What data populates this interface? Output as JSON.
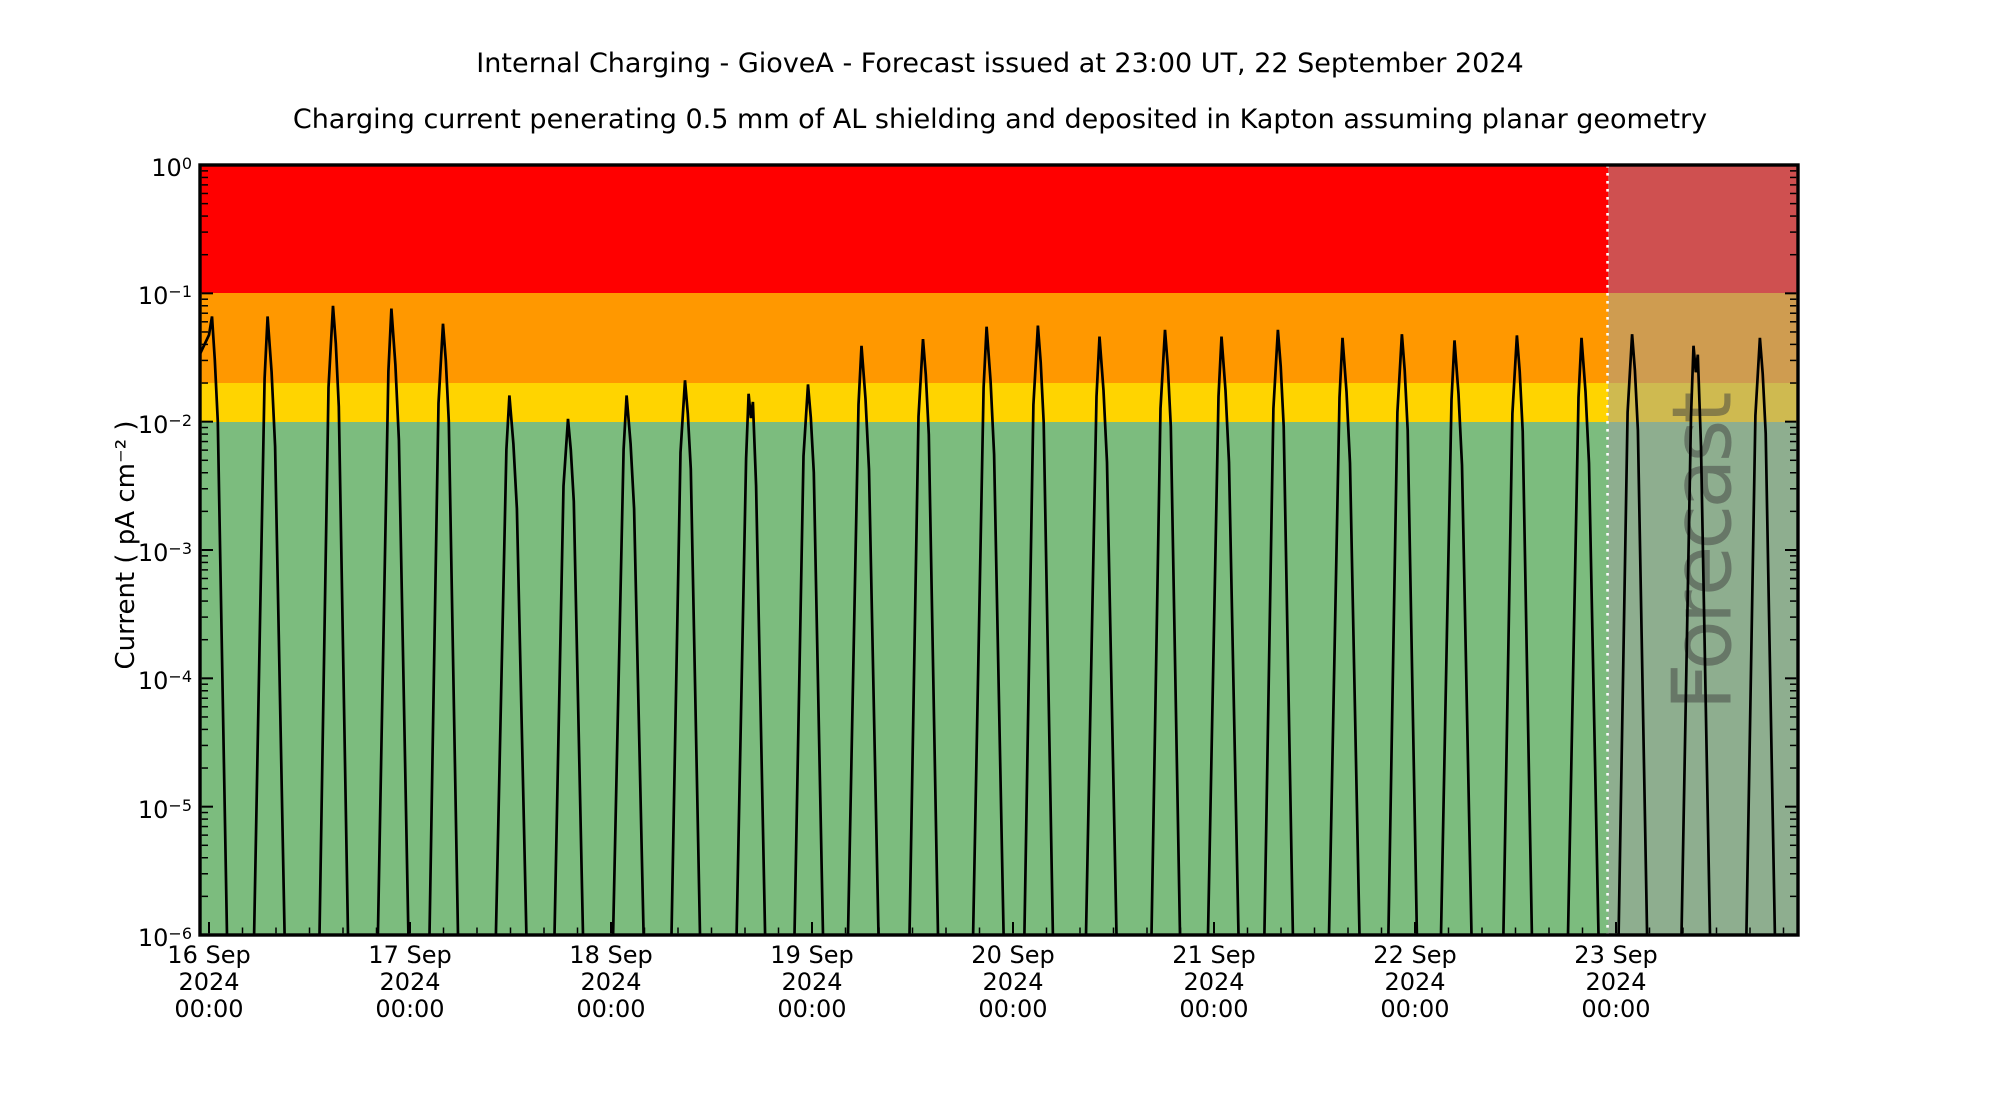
{
  "chart_data": {
    "type": "line",
    "title": "Internal Charging - GioveA - Forecast issued at 23:00 UT, 22 September 2024",
    "subtitle": "Charging current penerating 0.5 mm of AL shielding and deposited in Kapton assuming planar geometry",
    "background_color": "#ffffff",
    "y_axis": {
      "label": "Current ( pA cm⁻² )",
      "scale": "log",
      "range": [
        1e-06,
        1
      ],
      "tick_exponents": [
        0,
        -1,
        -2,
        -3,
        -4,
        -5,
        -6
      ]
    },
    "x_axis": {
      "unit": "days since 16 Sep 2024 00:00 UT",
      "range_days": [
        -0.045,
        7.906
      ],
      "tick_days": [
        0,
        1,
        2,
        3,
        4,
        5,
        6,
        7
      ],
      "tick_labels": [
        [
          "16 Sep",
          "2024",
          "00:00"
        ],
        [
          "17 Sep",
          "2024",
          "00:00"
        ],
        [
          "18 Sep",
          "2024",
          "00:00"
        ],
        [
          "19 Sep",
          "2024",
          "00:00"
        ],
        [
          "20 Sep",
          "2024",
          "00:00"
        ],
        [
          "21 Sep",
          "2024",
          "00:00"
        ],
        [
          "22 Sep",
          "2024",
          "00:00"
        ],
        [
          "23 Sep",
          "2024",
          "00:00"
        ]
      ],
      "minor_tick_hours": 4
    },
    "bands": [
      {
        "name": "red",
        "from": 0.1,
        "to": 1,
        "color": "#ff0000"
      },
      {
        "name": "orange",
        "from": 0.02,
        "to": 0.1,
        "color": "#ff9800"
      },
      {
        "name": "yellow",
        "from": 0.01,
        "to": 0.02,
        "color": "#ffd400"
      },
      {
        "name": "green",
        "from": 1e-06,
        "to": 0.01,
        "color": "#7cbc7e"
      }
    ],
    "forecast": {
      "label": "Forecast",
      "start_day": 6.958,
      "overlay_color": "rgba(160,160,160,0.5)",
      "divider_color": "#ffffff",
      "label_color": "rgba(64,64,64,0.5)"
    },
    "series": [
      {
        "name": "charging-current",
        "color": "#000000",
        "peak_unit": "pA cm-2",
        "spikes": [
          {
            "t_days": 0.015,
            "peak": 0.066
          },
          {
            "t_days": 0.294,
            "peak": 0.066
          },
          {
            "t_days": 0.617,
            "peak": 0.08
          },
          {
            "t_days": 0.91,
            "peak": 0.076
          },
          {
            "t_days": 1.164,
            "peak": 0.058
          },
          {
            "t_days": 1.497,
            "peak": 0.016
          },
          {
            "t_days": 1.786,
            "peak": 0.0105
          },
          {
            "t_days": 2.08,
            "peak": 0.016
          },
          {
            "t_days": 2.368,
            "peak": 0.021
          },
          {
            "t_days": 2.692,
            "peak": 0.0165
          },
          {
            "t_days": 2.98,
            "peak": 0.0195
          },
          {
            "t_days": 3.249,
            "peak": 0.039
          },
          {
            "t_days": 3.552,
            "peak": 0.044
          },
          {
            "t_days": 3.871,
            "peak": 0.055
          },
          {
            "t_days": 4.124,
            "peak": 0.056
          },
          {
            "t_days": 4.433,
            "peak": 0.046
          },
          {
            "t_days": 4.756,
            "peak": 0.052
          },
          {
            "t_days": 5.04,
            "peak": 0.046
          },
          {
            "t_days": 5.318,
            "peak": 0.052
          },
          {
            "t_days": 5.642,
            "peak": 0.045
          },
          {
            "t_days": 5.935,
            "peak": 0.048
          },
          {
            "t_days": 6.199,
            "peak": 0.043
          },
          {
            "t_days": 6.507,
            "peak": 0.047
          },
          {
            "t_days": 6.831,
            "peak": 0.045
          },
          {
            "t_days": 7.08,
            "peak": 0.048
          },
          {
            "t_days": 7.393,
            "peak": 0.039
          },
          {
            "t_days": 7.716,
            "peak": 0.045
          }
        ]
      }
    ]
  }
}
